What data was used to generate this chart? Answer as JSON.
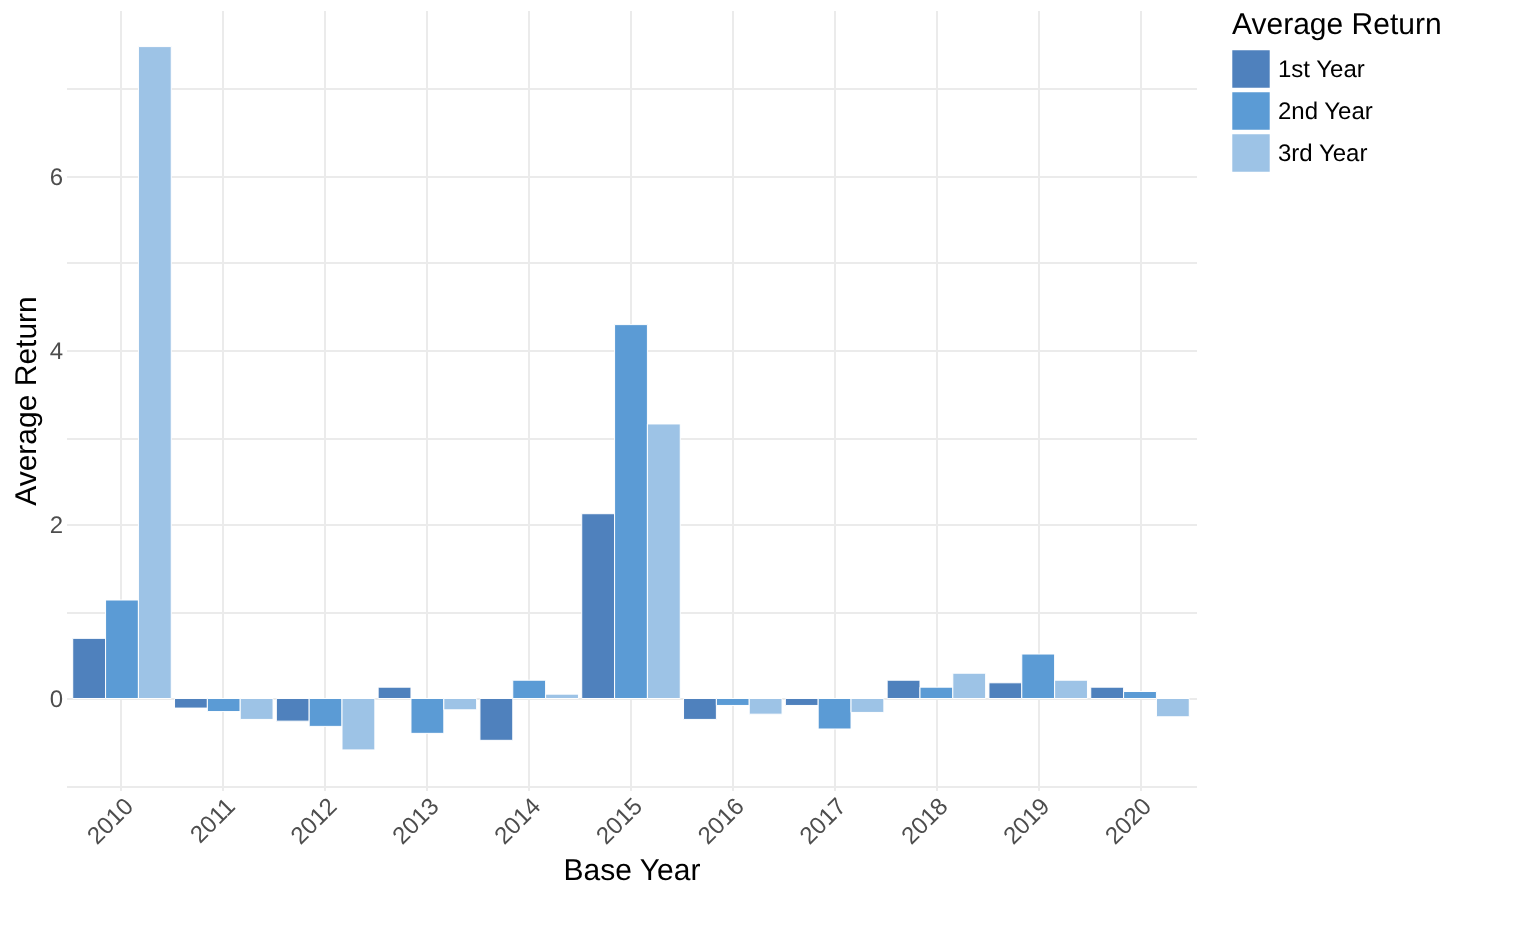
{
  "chart_data": {
    "type": "bar",
    "xlabel": "Base Year",
    "ylabel": "Average Return",
    "legend_title": "Average Return",
    "categories": [
      "2010",
      "2011",
      "2012",
      "2013",
      "2014",
      "2015",
      "2016",
      "2017",
      "2018",
      "2019",
      "2020"
    ],
    "series": [
      {
        "name": "1st Year",
        "color": "#4f81bd",
        "values": [
          0.69,
          -0.11,
          -0.26,
          0.13,
          -0.48,
          2.12,
          -0.24,
          -0.08,
          0.21,
          0.18,
          0.13
        ]
      },
      {
        "name": "2nd Year",
        "color": "#5b9bd5",
        "values": [
          1.13,
          -0.15,
          -0.32,
          -0.4,
          0.21,
          4.29,
          -0.08,
          -0.35,
          0.13,
          0.51,
          0.08
        ]
      },
      {
        "name": "3rd Year",
        "color": "#9dc3e6",
        "values": [
          7.48,
          -0.24,
          -0.59,
          -0.13,
          0.05,
          3.15,
          -0.18,
          -0.16,
          0.29,
          0.21,
          -0.21
        ]
      }
    ],
    "ylim": [
      -1.05,
      7.9
    ],
    "yticks": [
      {
        "value": -1,
        "label": null
      },
      0,
      {
        "value": 1,
        "label": null
      },
      2,
      {
        "value": 3,
        "label": null
      },
      4,
      {
        "value": 5,
        "label": null
      },
      6,
      {
        "value": 7,
        "label": null
      }
    ],
    "grid": true,
    "legend": "right"
  }
}
